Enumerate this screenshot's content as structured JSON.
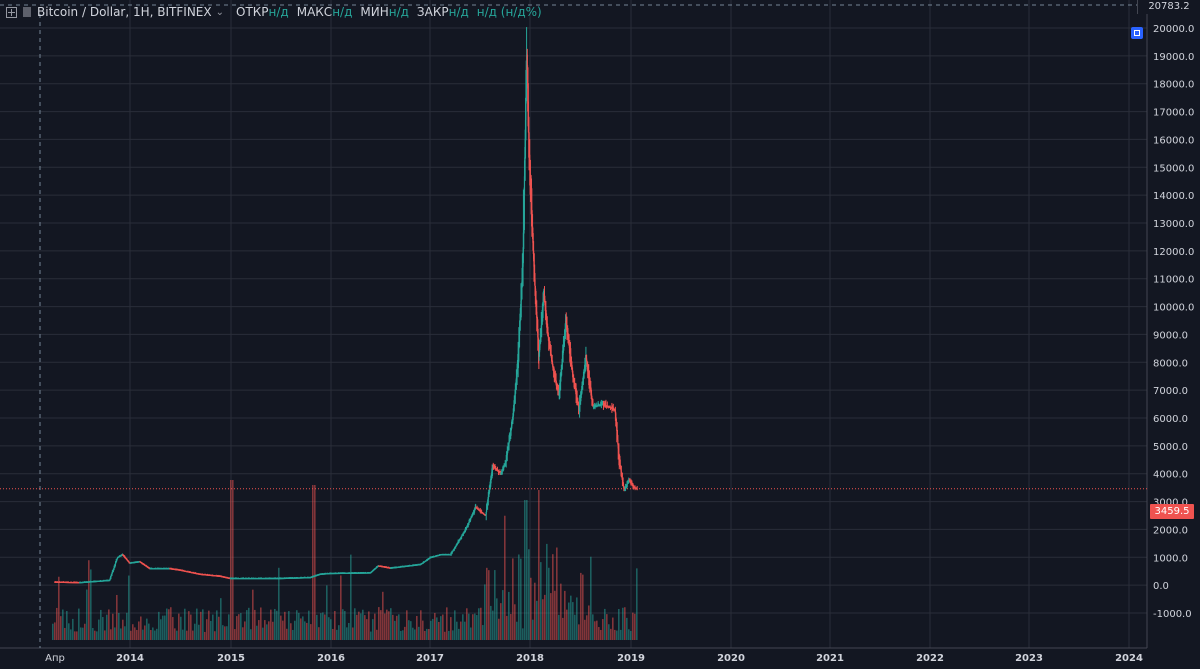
{
  "legend": {
    "symbol": "Bitcoin / Dollar, 1H, BITFINEX",
    "open_label": "ОТКР",
    "open_value": "н/д",
    "high_label": "МАКС",
    "high_value": "н/д",
    "low_label": "МИН",
    "low_value": "н/д",
    "close_label": "ЗАКР",
    "close_value": "н/д",
    "change_value": "н/д (н/д%)"
  },
  "crosshair_price": "20783.2",
  "last_price": "3459.5",
  "colors": {
    "background": "#131722",
    "grid": "#2a2e39",
    "up": "#26a69a",
    "down": "#ef5350",
    "text": "#d1d4dc"
  },
  "icons": [
    "chart-type-icon",
    "symbol-icon",
    "chevron-down-icon",
    "plus-icon",
    "chart-context-icon"
  ],
  "chart_data": {
    "type": "candlestick",
    "xlabel": "",
    "ylabel": "",
    "ylim": [
      -1000,
      20000
    ],
    "grid": true,
    "x_ticks": [
      "Апр",
      "2014",
      "2015",
      "2016",
      "2017",
      "2018",
      "2019",
      "2020",
      "2021",
      "2022",
      "2023",
      "2024"
    ],
    "y_ticks": [
      "20000.0",
      "19000.0",
      "18000.0",
      "17000.0",
      "16000.0",
      "15000.0",
      "14000.0",
      "13000.0",
      "12000.0",
      "11000.0",
      "10000.0",
      "9000.0",
      "8000.0",
      "7000.0",
      "6000.0",
      "5000.0",
      "4000.0",
      "3000.0",
      "2000.0",
      "1000.0",
      "0.0",
      "-1000.0"
    ],
    "price_series": [
      {
        "t": 2013.25,
        "v": 120
      },
      {
        "t": 2013.5,
        "v": 100
      },
      {
        "t": 2013.8,
        "v": 180
      },
      {
        "t": 2013.88,
        "v": 1000
      },
      {
        "t": 2013.93,
        "v": 1100
      },
      {
        "t": 2014.0,
        "v": 800
      },
      {
        "t": 2014.1,
        "v": 850
      },
      {
        "t": 2014.2,
        "v": 600
      },
      {
        "t": 2014.4,
        "v": 600
      },
      {
        "t": 2014.5,
        "v": 550
      },
      {
        "t": 2014.7,
        "v": 400
      },
      {
        "t": 2014.9,
        "v": 330
      },
      {
        "t": 2015.0,
        "v": 250
      },
      {
        "t": 2015.5,
        "v": 250
      },
      {
        "t": 2015.8,
        "v": 280
      },
      {
        "t": 2015.9,
        "v": 400
      },
      {
        "t": 2016.0,
        "v": 430
      },
      {
        "t": 2016.4,
        "v": 450
      },
      {
        "t": 2016.48,
        "v": 700
      },
      {
        "t": 2016.6,
        "v": 620
      },
      {
        "t": 2016.9,
        "v": 750
      },
      {
        "t": 2017.0,
        "v": 1000
      },
      {
        "t": 2017.1,
        "v": 1100
      },
      {
        "t": 2017.2,
        "v": 1100
      },
      {
        "t": 2017.35,
        "v": 2000
      },
      {
        "t": 2017.45,
        "v": 2800
      },
      {
        "t": 2017.55,
        "v": 2500
      },
      {
        "t": 2017.62,
        "v": 4300
      },
      {
        "t": 2017.7,
        "v": 4000
      },
      {
        "t": 2017.75,
        "v": 4400
      },
      {
        "t": 2017.82,
        "v": 6000
      },
      {
        "t": 2017.87,
        "v": 8000
      },
      {
        "t": 2017.92,
        "v": 11500
      },
      {
        "t": 2017.96,
        "v": 19200
      },
      {
        "t": 2017.98,
        "v": 16000
      },
      {
        "t": 2018.0,
        "v": 14000
      },
      {
        "t": 2018.03,
        "v": 11500
      },
      {
        "t": 2018.08,
        "v": 8200
      },
      {
        "t": 2018.13,
        "v": 10500
      },
      {
        "t": 2018.17,
        "v": 9000
      },
      {
        "t": 2018.22,
        "v": 7800
      },
      {
        "t": 2018.28,
        "v": 6800
      },
      {
        "t": 2018.35,
        "v": 9500
      },
      {
        "t": 2018.42,
        "v": 7500
      },
      {
        "t": 2018.48,
        "v": 6300
      },
      {
        "t": 2018.55,
        "v": 8200
      },
      {
        "t": 2018.62,
        "v": 6400
      },
      {
        "t": 2018.72,
        "v": 6500
      },
      {
        "t": 2018.84,
        "v": 6300
      },
      {
        "t": 2018.88,
        "v": 4500
      },
      {
        "t": 2018.93,
        "v": 3400
      },
      {
        "t": 2018.98,
        "v": 3800
      },
      {
        "t": 2019.03,
        "v": 3500
      },
      {
        "t": 2019.06,
        "v": 3459.5
      }
    ]
  }
}
